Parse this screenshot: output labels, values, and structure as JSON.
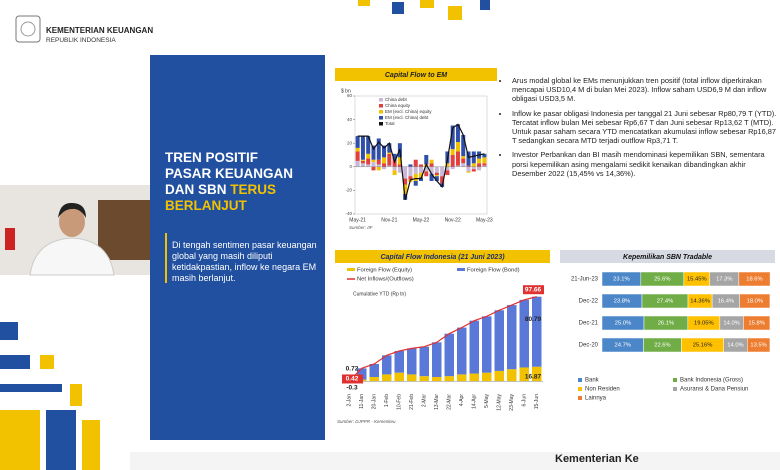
{
  "header": {
    "org": "KEMENTERIAN KEUANGAN",
    "country": "REPUBLIK INDONESIA"
  },
  "panel": {
    "title": {
      "lines": [
        "TREN POSITIF",
        "PASAR KEUANGAN"
      ],
      "line3": "DAN SBN",
      "highlight": [
        "TERUS",
        "BERLANJUT"
      ]
    },
    "text": "Di tengah sentimen pasar keuangan global yang masih diliputi ketidakpastian, inflow ke negara EM masih berlanjut."
  },
  "bullets": [
    "Arus modal global ke EMs menunjukkan tren positif (total inflow diperkirakan mencapai USD10,4 M di bulan Mei 2023). Inflow saham USD6,9 M dan inflow obligasi USD3,5 M.",
    "Inflow ke pasar obligasi Indonesia per tanggal 21 Juni sebesar Rp80,79 T (YTD). Tercatat inflow bulan Mei sebesar Rp6,67 T dan Juni sebesar Rp13,62 T (MTD). Untuk pasar saham secara YTD mencatatkan akumulasi inflow sebesar Rp16,87 T sedangkan secara MTD terjadi outflow Rp3,71 T.",
    "Investor Perbankan dan BI masih mendominasi kepemilikan SBN, sementara porsi kepemilikan asing mengalami sedikit kenaikan dibandingkan akhir Desember 2022 (15,45% vs 14,36%)."
  ],
  "footer": "Kementerian Ke",
  "chart_data": [
    {
      "type": "stacked_bar",
      "title": "Capital Flow to EM",
      "ylabel": "$ bn",
      "source": "Sumber: IIF",
      "categories": [
        "May-21",
        null,
        null,
        null,
        null,
        null,
        "Nov-21",
        null,
        null,
        null,
        null,
        null,
        "May-22",
        null,
        null,
        null,
        null,
        null,
        "Nov-22",
        null,
        null,
        null,
        null,
        null,
        "May-23"
      ],
      "ylim": [
        -40,
        60
      ],
      "yticks": [
        -40,
        -20,
        0,
        20,
        40,
        60
      ],
      "series": [
        {
          "name": "China debt",
          "color": "#c9b8d8",
          "values": [
            5,
            3,
            2,
            4,
            2,
            -2,
            1,
            -3,
            -5,
            -10,
            -8,
            -6,
            -5,
            -4,
            -6,
            -5,
            -8,
            -3,
            -2,
            1,
            3,
            -4,
            -2,
            -3,
            1
          ]
        },
        {
          "name": "China equity",
          "color": "#e04040",
          "values": [
            8,
            2,
            5,
            -3,
            4,
            3,
            10,
            6,
            2,
            -5,
            -3,
            6,
            2,
            -4,
            3,
            -2,
            -6,
            -4,
            10,
            12,
            4,
            1,
            -2,
            3,
            2
          ]
        },
        {
          "name": "EM (excl. China) equity",
          "color": "#f2c200",
          "values": [
            3,
            1,
            4,
            2,
            -3,
            5,
            1,
            -4,
            6,
            -8,
            -2,
            -6,
            -4,
            2,
            3,
            -1,
            0,
            3,
            5,
            8,
            2,
            -1,
            3,
            4,
            5
          ]
        },
        {
          "name": "EM (excl. China) debt",
          "color": "#2f4fa8",
          "values": [
            10,
            20,
            15,
            12,
            18,
            10,
            8,
            5,
            12,
            -5,
            2,
            -4,
            -3,
            8,
            -6,
            -4,
            -3,
            10,
            20,
            15,
            18,
            12,
            10,
            6,
            3
          ]
        }
      ],
      "total": {
        "name": "Total",
        "color": "#111111",
        "values": [
          26,
          26,
          26,
          15,
          21,
          16,
          20,
          4,
          15,
          -28,
          -11,
          -10,
          -10,
          2,
          -6,
          -12,
          -17,
          6,
          33,
          36,
          27,
          8,
          9,
          10,
          11
        ]
      }
    },
    {
      "type": "stacked_bar",
      "title": "Capital Flow Indonesia (21 Juni 2023)",
      "ylabel": "Cumulative YTD (Rp tn)",
      "source": "Sumber: DJPPR - Kemenkeu",
      "categories": [
        "2-Jan",
        "11-Jan",
        "20-Jan",
        "1-Feb",
        "10-Feb",
        "21-Feb",
        "2-Mar",
        "13-Mar",
        "22-Mar",
        "4-Apr",
        "14-Apr",
        "5-May",
        "12-May",
        "23-May",
        "6-Jun",
        "15-Jun"
      ],
      "ylim": [
        -10,
        110
      ],
      "series": [
        {
          "name": "Foreign Flow (Equity)",
          "color": "#f2c200",
          "values": [
            -0.3,
            2,
            5,
            8,
            10,
            8,
            6,
            5,
            6,
            8,
            9,
            10,
            12,
            14,
            16,
            16.87
          ]
        },
        {
          "name": "Foreign Flow (Bond)",
          "color": "#5a78d8",
          "values": [
            0.72,
            13,
            15,
            22,
            25,
            30,
            34,
            40,
            49,
            54,
            61,
            65,
            70,
            74,
            78,
            80.79
          ]
        }
      ],
      "total": {
        "name": "Net Inflows/(Outflows)",
        "color": "#e03030",
        "values": [
          0.42,
          15,
          20,
          30,
          35,
          38,
          40,
          45,
          55,
          62,
          70,
          75,
          82,
          88,
          94,
          97.66
        ]
      }
    },
    {
      "type": "stacked_barh",
      "title": "Kepemilikan SBN Tradable",
      "categories": [
        "21-Jun-23",
        "Dec-22",
        "Dec-21",
        "Dec-20"
      ],
      "xlim": [
        0,
        100
      ],
      "series": [
        {
          "name": "Bank",
          "color": "#4a86c8",
          "values": [
            23.1,
            23.8,
            25.0,
            24.7
          ],
          "value_labels": [
            "23.1%",
            "23.8%",
            "25.0%",
            "24.7%"
          ]
        },
        {
          "name": "Bank Indonesia (Gross)",
          "color": "#70ad47",
          "values": [
            25.6,
            27.4,
            26.1,
            22.6
          ],
          "value_labels": [
            "25.6%",
            "27.4%",
            "26.1%",
            "22.6%"
          ]
        },
        {
          "name": "Non Residen",
          "color": "#ffc000",
          "values": [
            15.45,
            14.36,
            19.05,
            25.16
          ],
          "value_labels": [
            "15.45%",
            "14.36%",
            "19.05%",
            "25.16%"
          ]
        },
        {
          "name": "Asuransi & Dana Pensiun",
          "color": "#a5a5a5",
          "values": [
            17.3,
            16.4,
            14.0,
            14.0
          ],
          "value_labels": [
            "17.3%",
            "16.4%",
            "14.0%",
            "14.0%"
          ]
        },
        {
          "name": "Lainnya",
          "color": "#ed7d31",
          "values": [
            18.6,
            18.0,
            15.8,
            13.5
          ],
          "value_labels": [
            "18.6%",
            "18.0%",
            "15.8%",
            "13.5%"
          ]
        }
      ]
    }
  ]
}
